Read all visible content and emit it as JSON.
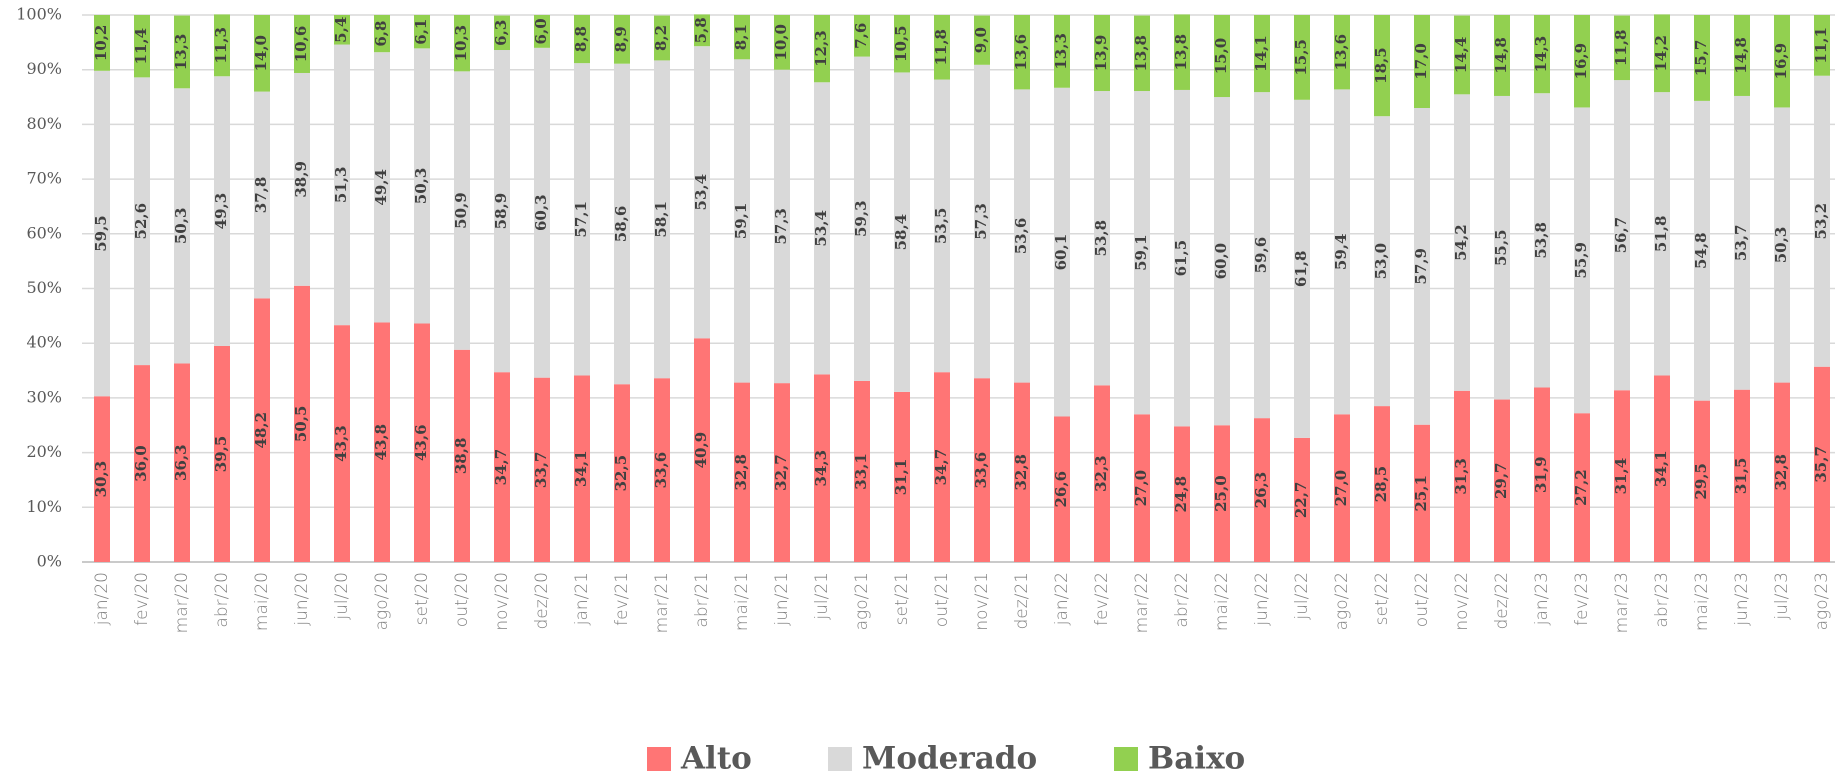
{
  "chart_data": {
    "type": "stacked_bar",
    "categories": [
      "jan/20",
      "fev/20",
      "mar/20",
      "abr/20",
      "mai/20",
      "jun/20",
      "jul/20",
      "ago/20",
      "set/20",
      "out/20",
      "nov/20",
      "dez/20",
      "jan/21",
      "fev/21",
      "mar/21",
      "abr/21",
      "mai/21",
      "jun/21",
      "jul/21",
      "ago/21",
      "set/21",
      "out/21",
      "nov/21",
      "dez/21",
      "jan/22",
      "fev/22",
      "mar/22",
      "abr/22",
      "mai/22",
      "jun/22",
      "jul/22",
      "ago/22",
      "set/22",
      "out/22",
      "nov/22",
      "dez/22",
      "jan/23",
      "fev/23",
      "mar/23",
      "abr/23",
      "mai/23",
      "jun/23",
      "jul/23",
      "ago/23"
    ],
    "series": [
      {
        "name": "Alto",
        "color": "#ff7575",
        "values": [
          30.3,
          36.0,
          36.3,
          39.5,
          48.2,
          50.5,
          43.3,
          43.8,
          43.6,
          38.8,
          34.7,
          33.7,
          34.1,
          32.5,
          33.6,
          40.9,
          32.8,
          32.7,
          34.3,
          33.1,
          31.1,
          34.7,
          33.6,
          32.8,
          26.6,
          32.3,
          27.0,
          24.8,
          25.0,
          26.3,
          22.7,
          27.0,
          28.5,
          25.1,
          31.3,
          29.7,
          31.9,
          27.2,
          31.4,
          34.1,
          29.5,
          31.5,
          32.8,
          35.7
        ],
        "value_labels": [
          "30,3",
          "36,0",
          "36,3",
          "39,5",
          "48,2",
          "50,5",
          "43,3",
          "43,8",
          "43,6",
          "38,8",
          "34,7",
          "33,7",
          "34,1",
          "32,5",
          "33,6",
          "40,9",
          "32,8",
          "32,7",
          "34,3",
          "33,1",
          "31,1",
          "34,7",
          "33,6",
          "32,8",
          "26,6",
          "32,3",
          "27,0",
          "24,8",
          "25,0",
          "26,3",
          "22,7",
          "27,0",
          "28,5",
          "25,1",
          "31,3",
          "29,7",
          "31,9",
          "27,2",
          "31,4",
          "34,1",
          "29,5",
          "31,5",
          "32,8",
          "35,7"
        ]
      },
      {
        "name": "Moderado",
        "color": "#d9d9d9",
        "values": [
          59.5,
          52.6,
          50.3,
          49.3,
          37.8,
          38.9,
          51.3,
          49.4,
          50.3,
          50.9,
          58.9,
          60.3,
          57.1,
          58.6,
          58.1,
          53.4,
          59.1,
          57.3,
          53.4,
          59.3,
          58.4,
          53.5,
          57.3,
          53.6,
          60.1,
          53.8,
          59.1,
          61.5,
          60.0,
          59.6,
          61.8,
          59.4,
          53.0,
          57.9,
          54.2,
          55.5,
          53.8,
          55.9,
          56.7,
          51.8,
          54.8,
          53.7,
          50.3,
          53.2
        ],
        "value_labels": [
          "59,5",
          "52,6",
          "50,3",
          "49,3",
          "37,8",
          "38,9",
          "51,3",
          "49,4",
          "50,3",
          "50,9",
          "58,9",
          "60,3",
          "57,1",
          "58,6",
          "58,1",
          "53,4",
          "59,1",
          "57,3",
          "53,4",
          "59,3",
          "58,4",
          "53,5",
          "57,3",
          "53,6",
          "60,1",
          "53,8",
          "59,1",
          "61,5",
          "60,0",
          "59,6",
          "61,8",
          "59,4",
          "53,0",
          "57,9",
          "54,2",
          "55,5",
          "53,8",
          "55,9",
          "56,7",
          "51,8",
          "54,8",
          "53,7",
          "50,3",
          "53,2"
        ]
      },
      {
        "name": "Baixo",
        "color": "#92d050",
        "values": [
          10.2,
          11.4,
          13.3,
          11.3,
          14.0,
          10.6,
          5.4,
          6.8,
          6.1,
          10.3,
          6.3,
          6.0,
          8.8,
          8.9,
          8.2,
          5.8,
          8.1,
          10.0,
          12.3,
          7.6,
          10.5,
          11.8,
          9.0,
          13.6,
          13.3,
          13.9,
          13.8,
          13.8,
          15.0,
          14.1,
          15.5,
          13.6,
          18.5,
          17.0,
          14.4,
          14.8,
          14.3,
          16.9,
          11.8,
          14.2,
          15.7,
          14.8,
          16.9,
          11.1
        ],
        "value_labels": [
          "10,2",
          "11,4",
          "13,3",
          "11,3",
          "14,0",
          "10,6",
          "5,4",
          "6,8",
          "6,1",
          "10,3",
          "6,3",
          "6,0",
          "8,8",
          "8,9",
          "8,2",
          "5,8",
          "8,1",
          "10,0",
          "12,3",
          "7,6",
          "10,5",
          "11,8",
          "9,0",
          "13,6",
          "13,3",
          "13,9",
          "13,8",
          "13,8",
          "15,0",
          "14,1",
          "15,5",
          "13,6",
          "18,5",
          "17,0",
          "14,4",
          "14,8",
          "14,3",
          "16,9",
          "11,8",
          "14,2",
          "15,7",
          "14,8",
          "16,9",
          "11,1"
        ]
      }
    ],
    "ylim": [
      0,
      100
    ],
    "yticks": [
      {
        "value": 0,
        "label": "0%"
      },
      {
        "value": 10,
        "label": "10%"
      },
      {
        "value": 20,
        "label": "20%"
      },
      {
        "value": 30,
        "label": "30%"
      },
      {
        "value": 40,
        "label": "40%"
      },
      {
        "value": 50,
        "label": "50%"
      },
      {
        "value": 60,
        "label": "60%"
      },
      {
        "value": 70,
        "label": "70%"
      },
      {
        "value": 80,
        "label": "80%"
      },
      {
        "value": 90,
        "label": "90%"
      },
      {
        "value": 100,
        "label": "100%"
      }
    ],
    "grid": true,
    "legend": "bottom"
  }
}
